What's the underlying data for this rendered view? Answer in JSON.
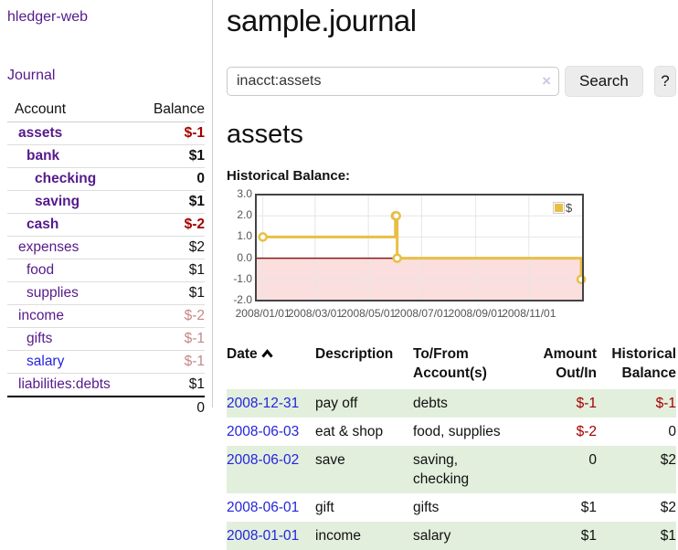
{
  "brand": "hledger-web",
  "sidebar": {
    "journal_link": "Journal",
    "accounts": {
      "header_account": "Account",
      "header_balance": "Balance",
      "rows": [
        {
          "name": "assets",
          "balance": "$-1"
        },
        {
          "name": "bank",
          "balance": "$1"
        },
        {
          "name": "checking",
          "balance": "0"
        },
        {
          "name": "saving",
          "balance": "$1"
        },
        {
          "name": "cash",
          "balance": "$-2"
        },
        {
          "name": "expenses",
          "balance": "$2"
        },
        {
          "name": "food",
          "balance": "$1"
        },
        {
          "name": "supplies",
          "balance": "$1"
        },
        {
          "name": "income",
          "balance": "$-2"
        },
        {
          "name": "gifts",
          "balance": "$-1"
        },
        {
          "name": "salary",
          "balance": "$-1"
        },
        {
          "name": "liabilities:debts",
          "balance": "$1"
        }
      ],
      "total": "0"
    }
  },
  "main": {
    "title": "sample.journal",
    "search": {
      "value": "inacct:assets",
      "clear": "×",
      "search_button": "Search",
      "help_button": "?"
    },
    "account_heading": "assets",
    "chart_title": "Historical Balance:"
  },
  "chart_data": {
    "type": "line",
    "title": "Historical Balance:",
    "step": true,
    "series": [
      {
        "name": "$",
        "color": "#e8bf45",
        "points": [
          [
            "2008-01-01",
            1
          ],
          [
            "2008-06-01",
            2
          ],
          [
            "2008-06-02",
            2
          ],
          [
            "2008-06-03",
            0
          ],
          [
            "2008-12-31",
            -1
          ]
        ]
      }
    ],
    "ylim": [
      -2,
      3
    ],
    "yticks": [
      3,
      2,
      1,
      0,
      -1,
      -2
    ],
    "xlim": [
      "2007-12-24",
      "2009-01-02"
    ],
    "xticks": [
      "2008/01/01",
      "2008/03/01",
      "2008/05/01",
      "2008/07/01",
      "2008/09/01",
      "2008/11/01"
    ],
    "legend_label": "$",
    "legend_position": "top-right",
    "grid": true,
    "colors": {
      "negative_fill": "#fbdede",
      "zero_line": "#8b1a1a",
      "grid_line": "#e6e6e6",
      "border": "#444444",
      "marker_fill": "#ffffff"
    }
  },
  "transactions": {
    "headers": {
      "date": "Date",
      "description": "Description",
      "tofrom": "To/From Account(s)",
      "amount": "Amount Out/In",
      "balance": "Historical Balance"
    },
    "rows": [
      {
        "date": "2008-12-31",
        "description": "pay off",
        "accounts": "debts",
        "amount": "$-1",
        "balance": "$-1"
      },
      {
        "date": "2008-06-03",
        "description": "eat & shop",
        "accounts": "food, supplies",
        "amount": "$-2",
        "balance": "0"
      },
      {
        "date": "2008-06-02",
        "description": "save",
        "accounts": "saving,\nchecking",
        "amount": "0",
        "balance": "$2"
      },
      {
        "date": "2008-06-01",
        "description": "gift",
        "accounts": "gifts",
        "amount": "$1",
        "balance": "$2"
      },
      {
        "date": "2008-01-01",
        "description": "income",
        "accounts": "salary",
        "amount": "$1",
        "balance": "$1"
      }
    ]
  }
}
